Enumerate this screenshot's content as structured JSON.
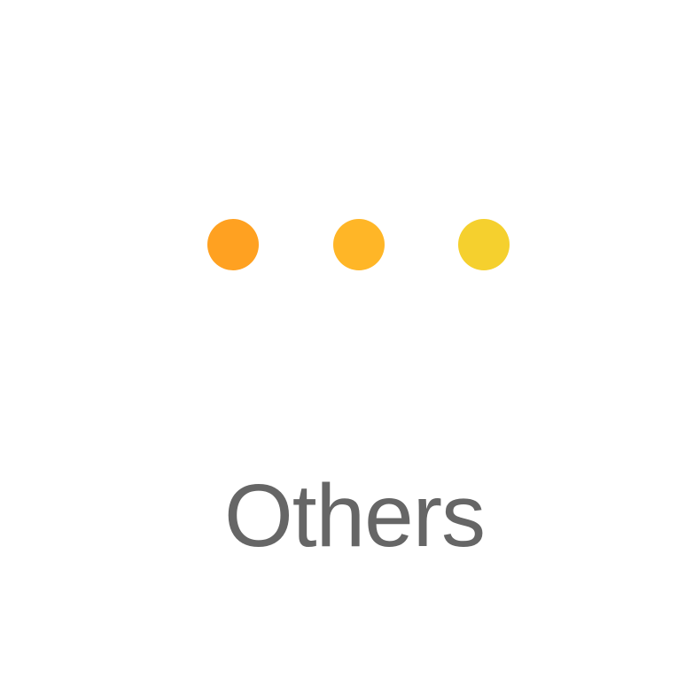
{
  "icon": {
    "name": "more-options-icon",
    "dots": [
      {
        "color": "#FFA121"
      },
      {
        "color": "#FFB627"
      },
      {
        "color": "#F5D02E"
      }
    ]
  },
  "label": "Others"
}
